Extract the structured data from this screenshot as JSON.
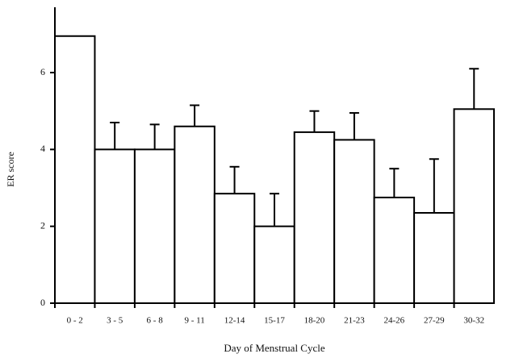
{
  "chart_data": {
    "type": "bar",
    "x_label": "Day of Menstrual Cycle",
    "y_label": "ER score",
    "categories": [
      "0 - 2",
      "3 - 5",
      "6 - 8",
      "9 - 11",
      "12-14",
      "15-17",
      "18-20",
      "21-23",
      "24-26",
      "27-29",
      "30-32"
    ],
    "values": [
      6.95,
      4.0,
      4.0,
      4.6,
      2.85,
      2.0,
      4.45,
      4.25,
      2.75,
      2.35,
      5.05
    ],
    "errors": [
      null,
      0.7,
      0.65,
      0.55,
      0.7,
      0.85,
      0.55,
      0.7,
      0.75,
      1.4,
      1.05
    ],
    "color": "#ffffff",
    "ylim": [
      0,
      7.7
    ],
    "yticks": [
      0,
      2,
      4,
      6
    ],
    "grid": false
  }
}
